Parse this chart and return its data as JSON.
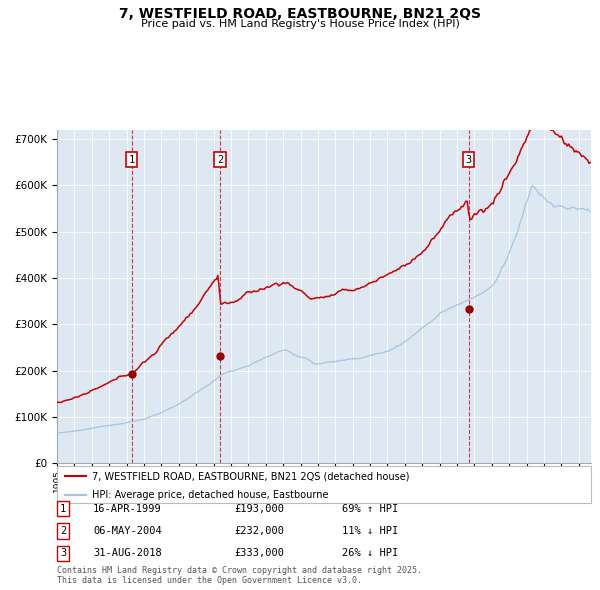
{
  "title": "7, WESTFIELD ROAD, EASTBOURNE, BN21 2QS",
  "subtitle": "Price paid vs. HM Land Registry's House Price Index (HPI)",
  "hpi_color": "#a8c4e0",
  "price_color": "#cc0000",
  "bg_color": "#dde8f3",
  "plot_bg": "#ffffff",
  "ylim": [
    0,
    720000
  ],
  "yticks": [
    0,
    100000,
    200000,
    300000,
    400000,
    500000,
    600000,
    700000
  ],
  "ytick_labels": [
    "£0",
    "£100K",
    "£200K",
    "£300K",
    "£400K",
    "£500K",
    "£600K",
    "£700K"
  ],
  "xmin": 1995.0,
  "xmax": 2025.7,
  "sale1_date": 1999.29,
  "sale1_price": 193000,
  "sale2_date": 2004.37,
  "sale2_price": 232000,
  "sale3_date": 2018.67,
  "sale3_price": 333000,
  "legend_label_price": "7, WESTFIELD ROAD, EASTBOURNE, BN21 2QS (detached house)",
  "legend_label_hpi": "HPI: Average price, detached house, Eastbourne",
  "table_rows": [
    {
      "num": "1",
      "date": "16-APR-1999",
      "price": "£193,000",
      "change": "69% ↑ HPI"
    },
    {
      "num": "2",
      "date": "06-MAY-2004",
      "price": "£232,000",
      "change": "11% ↓ HPI"
    },
    {
      "num": "3",
      "date": "31-AUG-2018",
      "price": "£333,000",
      "change": "26% ↓ HPI"
    }
  ],
  "footnote": "Contains HM Land Registry data © Crown copyright and database right 2025.\nThis data is licensed under the Open Government Licence v3.0."
}
